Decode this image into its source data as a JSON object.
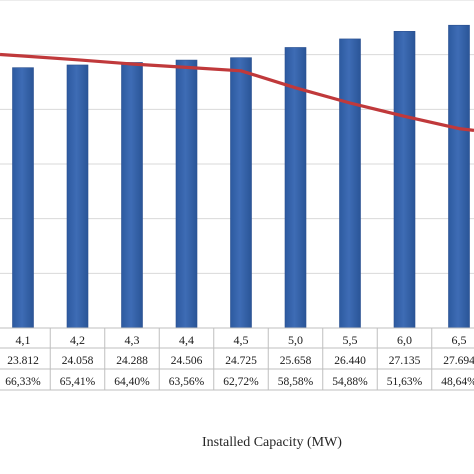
{
  "chart_data": {
    "type": "bar",
    "categories": [
      "4,1",
      "4,2",
      "4,3",
      "4,4",
      "4,5",
      "5,0",
      "5,5",
      "6,0",
      "6,5"
    ],
    "series": [
      {
        "kind": "bar",
        "values": [
          23812,
          24058,
          24288,
          24506,
          24725,
          25658,
          26440,
          27135,
          27694
        ],
        "color": "#3e6cb5"
      },
      {
        "kind": "line",
        "values": [
          66.33,
          65.41,
          64.4,
          63.56,
          62.72,
          58.58,
          54.88,
          51.63,
          48.64
        ],
        "color": "#c0393b"
      }
    ],
    "table_rows": [
      [
        "23.812",
        "24.058",
        "24.288",
        "24.506",
        "24.725",
        "25.658",
        "26.440",
        "27.135",
        "27.694"
      ],
      [
        "66,33%",
        "65,41%",
        "64,40%",
        "63,56%",
        "62,72%",
        "58,58%",
        "54,88%",
        "51,63%",
        "48,64%"
      ]
    ],
    "xlabel": "Installed Capacity (MW)",
    "ylabel": "",
    "title": "",
    "ylim_bars": [
      0,
      30000
    ],
    "ylim_line": [
      0,
      80
    ],
    "grid": true
  }
}
